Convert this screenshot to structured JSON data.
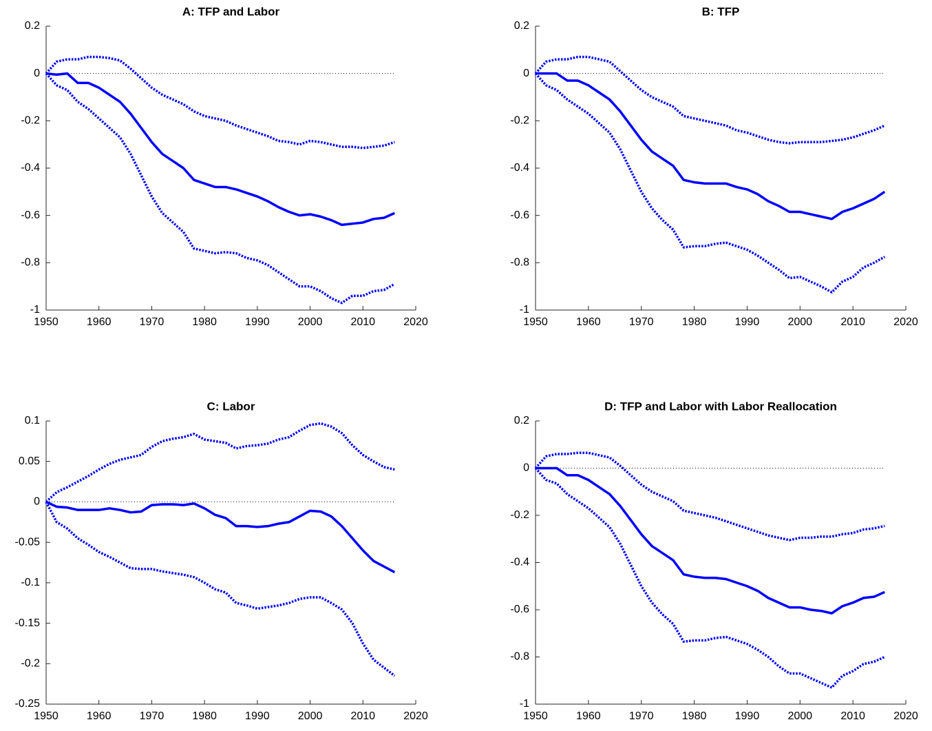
{
  "chart_data": [
    {
      "type": "line",
      "title": "A: TFP and Labor",
      "zero_line": true,
      "x": [
        1950,
        1952,
        1954,
        1956,
        1958,
        1960,
        1962,
        1964,
        1966,
        1968,
        1970,
        1972,
        1974,
        1976,
        1978,
        1980,
        1982,
        1984,
        1986,
        1988,
        1990,
        1992,
        1994,
        1996,
        1998,
        2000,
        2002,
        2004,
        2006,
        2008,
        2010,
        2012,
        2014,
        2016
      ],
      "xlim": [
        1950,
        2020
      ],
      "xticks": [
        1950,
        1960,
        1970,
        1980,
        1990,
        2000,
        2010,
        2020
      ],
      "ylim": [
        -1,
        0.2
      ],
      "yticks": [
        0.2,
        0,
        -0.2,
        -0.4,
        -0.6,
        -0.8,
        -1
      ],
      "series": [
        {
          "color": "#0000ff",
          "style": "solid",
          "values": [
            0,
            -0.005,
            0,
            -0.04,
            -0.04,
            -0.06,
            -0.09,
            -0.12,
            -0.17,
            -0.23,
            -0.29,
            -0.34,
            -0.37,
            -0.4,
            -0.45,
            -0.465,
            -0.48,
            -0.48,
            -0.49,
            -0.505,
            -0.52,
            -0.54,
            -0.565,
            -0.585,
            -0.6,
            -0.595,
            -0.605,
            -0.62,
            -0.64,
            -0.635,
            -0.63,
            -0.615,
            -0.61,
            -0.59
          ]
        },
        {
          "color": "#0000ff",
          "style": "dotted",
          "values": [
            0,
            0.05,
            0.06,
            0.06,
            0.07,
            0.07,
            0.065,
            0.055,
            0.02,
            -0.02,
            -0.06,
            -0.09,
            -0.11,
            -0.13,
            -0.16,
            -0.18,
            -0.19,
            -0.2,
            -0.22,
            -0.235,
            -0.25,
            -0.265,
            -0.285,
            -0.29,
            -0.3,
            -0.285,
            -0.29,
            -0.3,
            -0.31,
            -0.31,
            -0.315,
            -0.31,
            -0.305,
            -0.29
          ]
        },
        {
          "color": "#0000ff",
          "style": "dotted",
          "values": [
            0,
            -0.05,
            -0.07,
            -0.12,
            -0.15,
            -0.19,
            -0.23,
            -0.27,
            -0.34,
            -0.43,
            -0.52,
            -0.59,
            -0.63,
            -0.67,
            -0.74,
            -0.75,
            -0.76,
            -0.755,
            -0.76,
            -0.78,
            -0.79,
            -0.81,
            -0.84,
            -0.87,
            -0.9,
            -0.9,
            -0.92,
            -0.95,
            -0.97,
            -0.94,
            -0.94,
            -0.92,
            -0.915,
            -0.89
          ]
        }
      ]
    },
    {
      "type": "line",
      "title": "B: TFP",
      "zero_line": true,
      "x": [
        1950,
        1952,
        1954,
        1956,
        1958,
        1960,
        1962,
        1964,
        1966,
        1968,
        1970,
        1972,
        1974,
        1976,
        1978,
        1980,
        1982,
        1984,
        1986,
        1988,
        1990,
        1992,
        1994,
        1996,
        1998,
        2000,
        2002,
        2004,
        2006,
        2008,
        2010,
        2012,
        2014,
        2016
      ],
      "xlim": [
        1950,
        2020
      ],
      "xticks": [
        1950,
        1960,
        1970,
        1980,
        1990,
        2000,
        2010,
        2020
      ],
      "ylim": [
        -1,
        0.2
      ],
      "yticks": [
        0.2,
        0,
        -0.2,
        -0.4,
        -0.6,
        -0.8,
        -1
      ],
      "series": [
        {
          "color": "#0000ff",
          "style": "solid",
          "values": [
            0,
            0,
            0,
            -0.03,
            -0.03,
            -0.05,
            -0.08,
            -0.11,
            -0.16,
            -0.22,
            -0.28,
            -0.33,
            -0.36,
            -0.39,
            -0.45,
            -0.46,
            -0.465,
            -0.465,
            -0.465,
            -0.48,
            -0.49,
            -0.51,
            -0.54,
            -0.56,
            -0.585,
            -0.585,
            -0.595,
            -0.605,
            -0.615,
            -0.585,
            -0.57,
            -0.55,
            -0.53,
            -0.5
          ]
        },
        {
          "color": "#0000ff",
          "style": "dotted",
          "values": [
            0,
            0.05,
            0.06,
            0.06,
            0.07,
            0.07,
            0.06,
            0.05,
            0.01,
            -0.03,
            -0.07,
            -0.1,
            -0.12,
            -0.14,
            -0.18,
            -0.19,
            -0.2,
            -0.21,
            -0.22,
            -0.24,
            -0.25,
            -0.265,
            -0.28,
            -0.29,
            -0.295,
            -0.29,
            -0.29,
            -0.29,
            -0.285,
            -0.28,
            -0.27,
            -0.255,
            -0.24,
            -0.22
          ]
        },
        {
          "color": "#0000ff",
          "style": "dotted",
          "values": [
            0,
            -0.05,
            -0.07,
            -0.11,
            -0.14,
            -0.17,
            -0.21,
            -0.25,
            -0.32,
            -0.41,
            -0.5,
            -0.57,
            -0.62,
            -0.66,
            -0.735,
            -0.73,
            -0.73,
            -0.72,
            -0.715,
            -0.73,
            -0.745,
            -0.77,
            -0.8,
            -0.83,
            -0.865,
            -0.86,
            -0.88,
            -0.9,
            -0.925,
            -0.88,
            -0.86,
            -0.82,
            -0.8,
            -0.775
          ]
        }
      ]
    },
    {
      "type": "line",
      "title": "C: Labor",
      "zero_line": true,
      "x": [
        1950,
        1952,
        1954,
        1956,
        1958,
        1960,
        1962,
        1964,
        1966,
        1968,
        1970,
        1972,
        1974,
        1976,
        1978,
        1980,
        1982,
        1984,
        1986,
        1988,
        1990,
        1992,
        1994,
        1996,
        1998,
        2000,
        2002,
        2004,
        2006,
        2008,
        2010,
        2012,
        2014,
        2016
      ],
      "xlim": [
        1950,
        2020
      ],
      "xticks": [
        1950,
        1960,
        1970,
        1980,
        1990,
        2000,
        2010,
        2020
      ],
      "ylim": [
        -0.25,
        0.1
      ],
      "yticks": [
        0.1,
        0.05,
        0,
        -0.05,
        -0.1,
        -0.15,
        -0.2,
        -0.25
      ],
      "series": [
        {
          "color": "#0000ff",
          "style": "solid",
          "values": [
            0,
            -0.006,
            -0.007,
            -0.01,
            -0.01,
            -0.01,
            -0.008,
            -0.01,
            -0.013,
            -0.012,
            -0.004,
            -0.003,
            -0.003,
            -0.004,
            -0.002,
            -0.008,
            -0.016,
            -0.02,
            -0.03,
            -0.03,
            -0.031,
            -0.03,
            -0.027,
            -0.025,
            -0.018,
            -0.011,
            -0.012,
            -0.018,
            -0.03,
            -0.045,
            -0.06,
            -0.073,
            -0.08,
            -0.087
          ]
        },
        {
          "color": "#0000ff",
          "style": "dotted",
          "values": [
            0,
            0.012,
            0.018,
            0.025,
            0.032,
            0.04,
            0.047,
            0.052,
            0.055,
            0.058,
            0.068,
            0.075,
            0.078,
            0.08,
            0.084,
            0.077,
            0.075,
            0.073,
            0.066,
            0.069,
            0.07,
            0.072,
            0.077,
            0.08,
            0.088,
            0.095,
            0.097,
            0.093,
            0.085,
            0.07,
            0.058,
            0.05,
            0.043,
            0.04
          ]
        },
        {
          "color": "#0000ff",
          "style": "dotted",
          "values": [
            0,
            -0.025,
            -0.033,
            -0.045,
            -0.053,
            -0.062,
            -0.068,
            -0.075,
            -0.082,
            -0.083,
            -0.083,
            -0.086,
            -0.088,
            -0.09,
            -0.093,
            -0.1,
            -0.108,
            -0.112,
            -0.125,
            -0.128,
            -0.132,
            -0.13,
            -0.128,
            -0.125,
            -0.12,
            -0.118,
            -0.118,
            -0.125,
            -0.133,
            -0.15,
            -0.175,
            -0.195,
            -0.205,
            -0.215
          ]
        }
      ]
    },
    {
      "type": "line",
      "title": "D: TFP and Labor with Labor Reallocation",
      "zero_line": true,
      "x": [
        1950,
        1952,
        1954,
        1956,
        1958,
        1960,
        1962,
        1964,
        1966,
        1968,
        1970,
        1972,
        1974,
        1976,
        1978,
        1980,
        1982,
        1984,
        1986,
        1988,
        1990,
        1992,
        1994,
        1996,
        1998,
        2000,
        2002,
        2004,
        2006,
        2008,
        2010,
        2012,
        2014,
        2016
      ],
      "xlim": [
        1950,
        2020
      ],
      "xticks": [
        1950,
        1960,
        1970,
        1980,
        1990,
        2000,
        2010,
        2020
      ],
      "ylim": [
        -1,
        0.2
      ],
      "yticks": [
        0.2,
        0,
        -0.2,
        -0.4,
        -0.6,
        -0.8,
        -1
      ],
      "series": [
        {
          "color": "#0000ff",
          "style": "solid",
          "values": [
            0,
            0,
            0,
            -0.03,
            -0.03,
            -0.05,
            -0.08,
            -0.11,
            -0.16,
            -0.22,
            -0.28,
            -0.33,
            -0.36,
            -0.39,
            -0.45,
            -0.46,
            -0.465,
            -0.465,
            -0.47,
            -0.485,
            -0.5,
            -0.52,
            -0.55,
            -0.57,
            -0.59,
            -0.59,
            -0.6,
            -0.605,
            -0.615,
            -0.585,
            -0.57,
            -0.55,
            -0.545,
            -0.525
          ]
        },
        {
          "color": "#0000ff",
          "style": "dotted",
          "values": [
            0,
            0.05,
            0.06,
            0.06,
            0.065,
            0.065,
            0.055,
            0.045,
            0.01,
            -0.03,
            -0.07,
            -0.1,
            -0.12,
            -0.14,
            -0.18,
            -0.19,
            -0.2,
            -0.21,
            -0.225,
            -0.24,
            -0.255,
            -0.27,
            -0.285,
            -0.295,
            -0.305,
            -0.295,
            -0.295,
            -0.29,
            -0.29,
            -0.28,
            -0.275,
            -0.26,
            -0.255,
            -0.245
          ]
        },
        {
          "color": "#0000ff",
          "style": "dotted",
          "values": [
            0,
            -0.05,
            -0.065,
            -0.11,
            -0.14,
            -0.17,
            -0.21,
            -0.25,
            -0.32,
            -0.41,
            -0.5,
            -0.57,
            -0.62,
            -0.66,
            -0.735,
            -0.73,
            -0.73,
            -0.72,
            -0.715,
            -0.73,
            -0.745,
            -0.77,
            -0.8,
            -0.84,
            -0.87,
            -0.87,
            -0.89,
            -0.91,
            -0.93,
            -0.88,
            -0.86,
            -0.83,
            -0.82,
            -0.8
          ]
        }
      ]
    }
  ]
}
